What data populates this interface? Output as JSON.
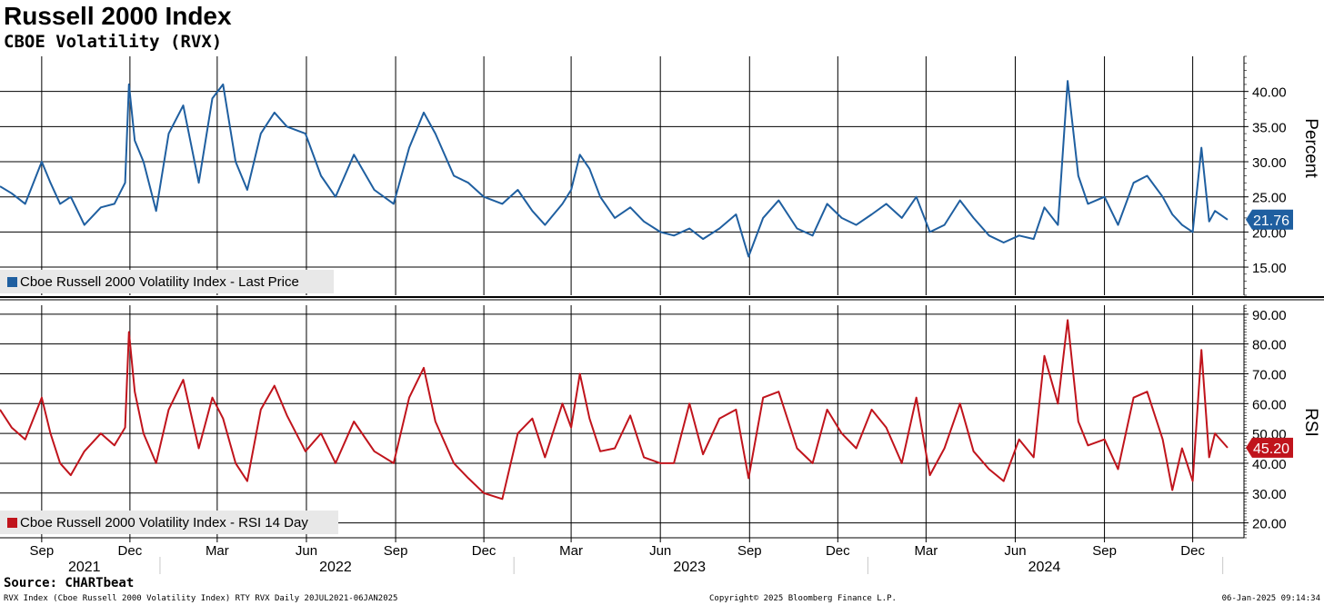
{
  "header": {
    "title": "Russell 2000 Index",
    "subtitle": "CBOE Volatility (RVX)"
  },
  "footer": {
    "source": "Source: CHARTbeat",
    "left": "RVX Index (Cboe Russell 2000 Volatility Index) RTY RVX  Daily 20JUL2021-06JAN2025",
    "center": "Copyright© 2025 Bloomberg Finance L.P.",
    "right": "06-Jan-2025 09:14:34"
  },
  "colors": {
    "price": "#1f5fa0",
    "rsi": "#c0141c",
    "grid": "#000000",
    "legend_bg": "#e8e8e8"
  },
  "chart_data": [
    {
      "type": "line",
      "panel": "top",
      "ylabel": "Percent",
      "ylim": [
        11,
        45
      ],
      "yticks": [
        "15.00",
        "20.00",
        "25.00",
        "30.00",
        "35.00",
        "40.00"
      ],
      "grid": true,
      "legend": "Cboe Russell 2000 Volatility Index - Last Price",
      "last_value_label": "21.76",
      "xlim": [
        "2021-07-20",
        "2025-01-06"
      ],
      "series": [
        {
          "name": "Cboe Russell 2000 Volatility Index - Last Price",
          "x": [
            "2021-07-20",
            "2021-08-01",
            "2021-08-15",
            "2021-09-01",
            "2021-09-10",
            "2021-09-20",
            "2021-10-01",
            "2021-10-15",
            "2021-11-01",
            "2021-11-15",
            "2021-11-26",
            "2021-11-30",
            "2021-12-06",
            "2021-12-15",
            "2021-12-28",
            "2022-01-10",
            "2022-01-25",
            "2022-02-10",
            "2022-02-24",
            "2022-03-07",
            "2022-03-20",
            "2022-04-01",
            "2022-04-15",
            "2022-04-29",
            "2022-05-12",
            "2022-05-31",
            "2022-06-16",
            "2022-07-01",
            "2022-07-20",
            "2022-08-10",
            "2022-08-30",
            "2022-09-15",
            "2022-09-30",
            "2022-10-12",
            "2022-10-31",
            "2022-11-15",
            "2022-12-01",
            "2022-12-20",
            "2023-01-05",
            "2023-01-20",
            "2023-02-02",
            "2023-02-20",
            "2023-03-01",
            "2023-03-10",
            "2023-03-20",
            "2023-03-31",
            "2023-04-15",
            "2023-05-01",
            "2023-05-15",
            "2023-06-01",
            "2023-06-15",
            "2023-07-01",
            "2023-07-15",
            "2023-08-01",
            "2023-08-18",
            "2023-08-31",
            "2023-09-15",
            "2023-10-01",
            "2023-10-20",
            "2023-11-05",
            "2023-11-20",
            "2023-12-05",
            "2023-12-20",
            "2024-01-05",
            "2024-01-20",
            "2024-02-05",
            "2024-02-20",
            "2024-03-05",
            "2024-03-20",
            "2024-04-05",
            "2024-04-19",
            "2024-05-05",
            "2024-05-20",
            "2024-06-05",
            "2024-06-20",
            "2024-07-01",
            "2024-07-15",
            "2024-07-25",
            "2024-08-05",
            "2024-08-15",
            "2024-09-01",
            "2024-09-15",
            "2024-10-01",
            "2024-10-15",
            "2024-10-31",
            "2024-11-10",
            "2024-11-20",
            "2024-12-01",
            "2024-12-10",
            "2024-12-18",
            "2024-12-24",
            "2025-01-06"
          ],
          "values": [
            26.5,
            25.5,
            24.0,
            30.0,
            27.0,
            24.0,
            25.0,
            21.0,
            23.5,
            24.0,
            27.0,
            41.0,
            33.0,
            30.0,
            23.0,
            34.0,
            38.0,
            27.0,
            39.0,
            41.0,
            30.0,
            26.0,
            34.0,
            37.0,
            35.0,
            34.0,
            28.0,
            25.0,
            31.0,
            26.0,
            24.0,
            32.0,
            37.0,
            34.0,
            28.0,
            27.0,
            25.0,
            24.0,
            26.0,
            23.0,
            21.0,
            24.0,
            26.0,
            31.0,
            29.0,
            25.0,
            22.0,
            23.5,
            21.5,
            20.0,
            19.5,
            20.5,
            19.0,
            20.5,
            22.5,
            16.5,
            22.0,
            24.5,
            20.5,
            19.5,
            24.0,
            22.0,
            21.0,
            22.5,
            24.0,
            22.0,
            25.0,
            20.0,
            21.0,
            24.5,
            22.0,
            19.5,
            18.5,
            19.5,
            19.0,
            23.5,
            21.0,
            41.5,
            28.0,
            24.0,
            25.0,
            21.0,
            27.0,
            28.0,
            25.0,
            22.5,
            21.0,
            20.0,
            32.0,
            21.5,
            23.0,
            21.76
          ]
        }
      ]
    },
    {
      "type": "line",
      "panel": "bottom",
      "ylabel": "RSI",
      "ylim": [
        15,
        93
      ],
      "yticks": [
        "20.00",
        "30.00",
        "40.00",
        "50.00",
        "60.00",
        "70.00",
        "80.00",
        "90.00"
      ],
      "grid": true,
      "legend": "Cboe Russell 2000 Volatility Index - RSI 14 Day",
      "last_value_label": "45.20",
      "xlim": [
        "2021-07-20",
        "2025-01-06"
      ],
      "series": [
        {
          "name": "Cboe Russell 2000 Volatility Index - RSI 14 Day",
          "x": [
            "2021-07-20",
            "2021-08-01",
            "2021-08-15",
            "2021-09-01",
            "2021-09-10",
            "2021-09-20",
            "2021-10-01",
            "2021-10-15",
            "2021-11-01",
            "2021-11-15",
            "2021-11-26",
            "2021-11-30",
            "2021-12-06",
            "2021-12-15",
            "2021-12-28",
            "2022-01-10",
            "2022-01-25",
            "2022-02-10",
            "2022-02-24",
            "2022-03-07",
            "2022-03-20",
            "2022-04-01",
            "2022-04-15",
            "2022-04-29",
            "2022-05-12",
            "2022-05-31",
            "2022-06-16",
            "2022-07-01",
            "2022-07-20",
            "2022-08-10",
            "2022-08-30",
            "2022-09-15",
            "2022-09-30",
            "2022-10-12",
            "2022-10-31",
            "2022-11-15",
            "2022-12-01",
            "2022-12-20",
            "2023-01-05",
            "2023-01-20",
            "2023-02-02",
            "2023-02-20",
            "2023-03-01",
            "2023-03-10",
            "2023-03-20",
            "2023-03-31",
            "2023-04-15",
            "2023-05-01",
            "2023-05-15",
            "2023-06-01",
            "2023-06-15",
            "2023-07-01",
            "2023-07-15",
            "2023-08-01",
            "2023-08-18",
            "2023-08-31",
            "2023-09-15",
            "2023-10-01",
            "2023-10-20",
            "2023-11-05",
            "2023-11-20",
            "2023-12-05",
            "2023-12-20",
            "2024-01-05",
            "2024-01-20",
            "2024-02-05",
            "2024-02-20",
            "2024-03-05",
            "2024-03-20",
            "2024-04-05",
            "2024-04-19",
            "2024-05-05",
            "2024-05-20",
            "2024-06-05",
            "2024-06-20",
            "2024-07-01",
            "2024-07-15",
            "2024-07-25",
            "2024-08-05",
            "2024-08-15",
            "2024-09-01",
            "2024-09-15",
            "2024-10-01",
            "2024-10-15",
            "2024-10-31",
            "2024-11-10",
            "2024-11-20",
            "2024-12-01",
            "2024-12-10",
            "2024-12-18",
            "2024-12-24",
            "2025-01-06"
          ],
          "values": [
            58,
            52,
            48,
            62,
            50,
            40,
            36,
            44,
            50,
            46,
            52,
            84,
            64,
            50,
            40,
            58,
            68,
            45,
            62,
            55,
            40,
            34,
            58,
            66,
            56,
            44,
            50,
            40,
            54,
            44,
            40,
            62,
            72,
            54,
            40,
            35,
            30,
            28,
            50,
            55,
            42,
            60,
            52,
            70,
            55,
            44,
            45,
            56,
            42,
            40,
            40,
            60,
            43,
            55,
            58,
            35,
            62,
            64,
            45,
            40,
            58,
            50,
            45,
            58,
            52,
            40,
            62,
            36,
            45,
            60,
            44,
            38,
            34,
            48,
            42,
            76,
            60,
            88,
            54,
            46,
            48,
            38,
            62,
            64,
            48,
            31,
            45,
            34,
            78,
            42,
            50,
            45.2
          ]
        }
      ]
    }
  ],
  "x_axis": {
    "months": [
      {
        "label": "Sep",
        "date": "2021-09-01"
      },
      {
        "label": "Dec",
        "date": "2021-12-01"
      },
      {
        "label": "Mar",
        "date": "2022-03-01"
      },
      {
        "label": "Jun",
        "date": "2022-06-01"
      },
      {
        "label": "Sep",
        "date": "2022-09-01"
      },
      {
        "label": "Dec",
        "date": "2022-12-01"
      },
      {
        "label": "Mar",
        "date": "2023-03-01"
      },
      {
        "label": "Jun",
        "date": "2023-06-01"
      },
      {
        "label": "Sep",
        "date": "2023-09-01"
      },
      {
        "label": "Dec",
        "date": "2023-12-01"
      },
      {
        "label": "Mar",
        "date": "2024-03-01"
      },
      {
        "label": "Jun",
        "date": "2024-06-01"
      },
      {
        "label": "Sep",
        "date": "2024-09-01"
      },
      {
        "label": "Dec",
        "date": "2024-12-01"
      }
    ],
    "years": [
      {
        "label": "2021",
        "date": "2021-10-15"
      },
      {
        "label": "2022",
        "date": "2022-07-01"
      },
      {
        "label": "2023",
        "date": "2023-07-01"
      },
      {
        "label": "2024",
        "date": "2024-07-01"
      }
    ],
    "year_boundaries": [
      "2022-01-01",
      "2023-01-01",
      "2024-01-01",
      "2025-01-01"
    ]
  }
}
